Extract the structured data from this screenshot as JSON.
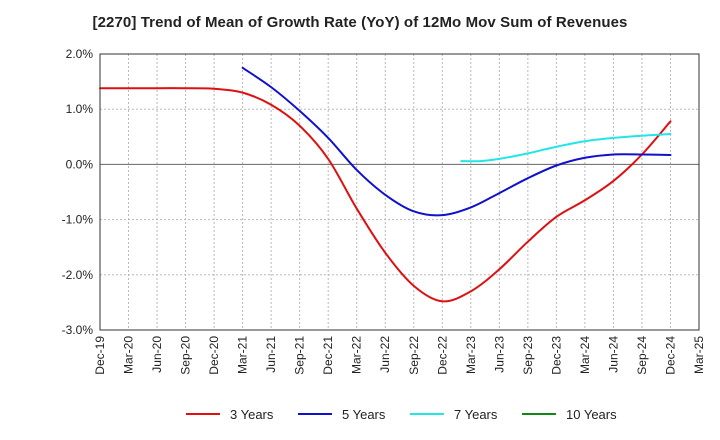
{
  "chart_data": {
    "type": "line",
    "title": "[2270]  Trend of Mean of Growth Rate (YoY) of 12Mo Mov Sum of Revenues",
    "xlabel": "",
    "ylabel": "",
    "ylim": [
      -3.0,
      2.0
    ],
    "yticks": [
      2.0,
      1.0,
      0.0,
      -1.0,
      -2.0,
      -3.0
    ],
    "ytick_labels": [
      "2.0%",
      "1.0%",
      "0.0%",
      "-1.0%",
      "-2.0%",
      "-3.0%"
    ],
    "x_start": "Dec-19",
    "xtick_labels": [
      "Dec-19",
      "Mar-20",
      "Jun-20",
      "Sep-20",
      "Dec-20",
      "Mar-21",
      "Jun-21",
      "Sep-21",
      "Dec-21",
      "Mar-22",
      "Jun-22",
      "Sep-22",
      "Dec-22",
      "Mar-23",
      "Jun-23",
      "Sep-23",
      "Dec-23",
      "Mar-24",
      "Jun-24",
      "Sep-24",
      "Dec-24",
      "Mar-25"
    ],
    "grid": true,
    "legend_position": "bottom",
    "series": [
      {
        "name": "3 Years",
        "color": "#dd1111",
        "points": [
          [
            0,
            1.38
          ],
          [
            3,
            1.38
          ],
          [
            6,
            1.38
          ],
          [
            9,
            1.38
          ],
          [
            12,
            1.37
          ],
          [
            15,
            1.3
          ],
          [
            18,
            1.08
          ],
          [
            21,
            0.7
          ],
          [
            24,
            0.1
          ],
          [
            27,
            -0.8
          ],
          [
            30,
            -1.6
          ],
          [
            33,
            -2.2
          ],
          [
            36,
            -2.48
          ],
          [
            39,
            -2.3
          ],
          [
            42,
            -1.9
          ],
          [
            45,
            -1.4
          ],
          [
            48,
            -0.95
          ],
          [
            51,
            -0.65
          ],
          [
            54,
            -0.3
          ],
          [
            57,
            0.18
          ],
          [
            60,
            0.78
          ]
        ]
      },
      {
        "name": "5 Years",
        "color": "#1111cc",
        "points": [
          [
            15,
            1.75
          ],
          [
            18,
            1.4
          ],
          [
            21,
            0.97
          ],
          [
            24,
            0.48
          ],
          [
            27,
            -0.1
          ],
          [
            30,
            -0.55
          ],
          [
            33,
            -0.85
          ],
          [
            36,
            -0.92
          ],
          [
            39,
            -0.78
          ],
          [
            42,
            -0.52
          ],
          [
            45,
            -0.25
          ],
          [
            48,
            -0.02
          ],
          [
            51,
            0.12
          ],
          [
            54,
            0.18
          ],
          [
            57,
            0.18
          ],
          [
            60,
            0.17
          ]
        ]
      },
      {
        "name": "7 Years",
        "color": "#22e5e5",
        "points": [
          [
            38,
            0.06
          ],
          [
            40,
            0.06
          ],
          [
            42,
            0.1
          ],
          [
            45,
            0.2
          ],
          [
            48,
            0.32
          ],
          [
            51,
            0.42
          ],
          [
            54,
            0.48
          ],
          [
            57,
            0.52
          ],
          [
            60,
            0.55
          ]
        ]
      },
      {
        "name": "10 Years",
        "color": "#118811",
        "points": []
      }
    ]
  }
}
